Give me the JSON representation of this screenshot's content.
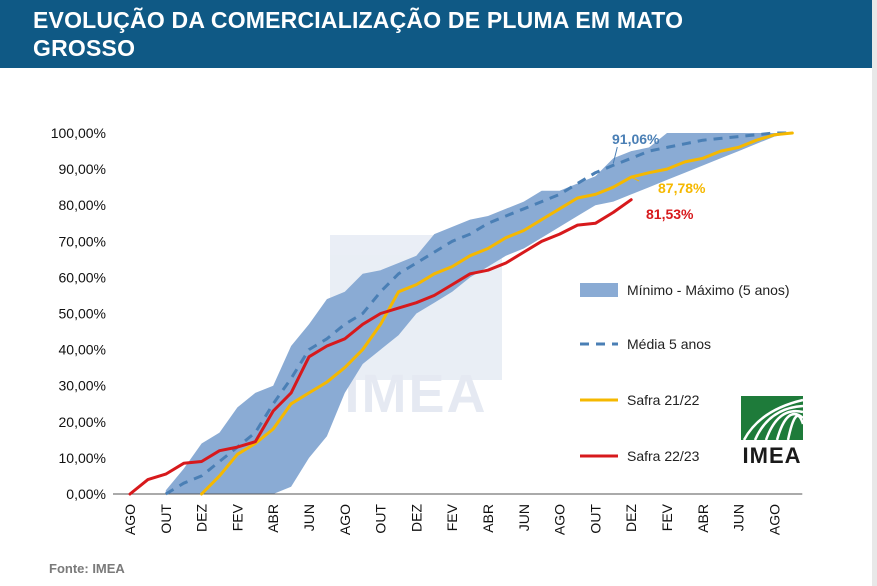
{
  "header": {
    "title": "EVOLUÇÃO DA COMERCIALIZAÇÃO DE PLUMA EM MATO GROSSO",
    "color": "#0f5985"
  },
  "source": "Fonte: IMEA",
  "watermark": {
    "text": "IMEA"
  },
  "logo": {
    "text": "IMEA",
    "color": "#1e7b3a"
  },
  "chart_data": {
    "type": "line",
    "x_categories": [
      "AGO",
      "OUT",
      "DEZ",
      "FEV",
      "ABR",
      "JUN",
      "AGO",
      "OUT",
      "DEZ",
      "FEV",
      "ABR",
      "JUN",
      "AGO",
      "OUT",
      "DEZ",
      "FEV",
      "ABR",
      "JUN",
      "AGO"
    ],
    "y_ticks": [
      "0,00%",
      "10,00%",
      "20,00%",
      "30,00%",
      "40,00%",
      "50,00%",
      "60,00%",
      "70,00%",
      "80,00%",
      "90,00%",
      "100,00%"
    ],
    "ylim": [
      0,
      100
    ],
    "legend_position": "right",
    "series": [
      {
        "name": "Mínimo - Máximo (5 anos)",
        "kind": "band",
        "color": "#8aabd4",
        "x": [
          1.0,
          1.5,
          2.0,
          2.5,
          3.0,
          3.5,
          4.0,
          4.5,
          5.0,
          5.5,
          6.0,
          6.5,
          7.0,
          7.5,
          8.0,
          8.5,
          9.0,
          9.5,
          10.0,
          10.5,
          11.0,
          11.5,
          12.0,
          12.5,
          13.0,
          13.5,
          14.0,
          14.5,
          15.0,
          15.5,
          16.0,
          16.5,
          17.0,
          17.5,
          18.0,
          18.5
        ],
        "min": [
          0,
          0,
          0,
          0,
          0,
          0,
          0,
          2,
          10,
          16,
          28,
          36,
          40,
          44,
          50,
          53,
          56,
          60,
          63,
          66,
          68,
          71,
          74,
          77,
          80,
          81,
          83,
          85,
          87,
          89,
          91,
          93,
          95,
          97,
          99,
          100
        ],
        "max": [
          1,
          7,
          14,
          17,
          24,
          28,
          30,
          41,
          47,
          54,
          56,
          61,
          62,
          64,
          66,
          72,
          74,
          76,
          77,
          79,
          81,
          84,
          84,
          86,
          88,
          93,
          95,
          96,
          100,
          100,
          100,
          100,
          100,
          100,
          100,
          100
        ]
      },
      {
        "name": "Média 5 anos",
        "kind": "dashed",
        "color": "#4a7fb5",
        "x": [
          1.0,
          1.5,
          2.0,
          2.5,
          3.0,
          3.5,
          4.0,
          4.5,
          5.0,
          5.5,
          6.0,
          6.5,
          7.0,
          7.5,
          8.0,
          8.5,
          9.0,
          9.5,
          10.0,
          10.5,
          11.0,
          11.5,
          12.0,
          12.5,
          13.0,
          13.5,
          14.0,
          14.5,
          15.0,
          15.5,
          16.0,
          16.5,
          17.0,
          17.5,
          18.0,
          18.5
        ],
        "y": [
          0,
          3,
          5,
          9,
          13,
          17,
          25,
          32,
          40,
          43,
          47,
          50,
          56,
          61,
          64,
          67,
          70,
          72,
          75,
          77,
          79,
          81,
          83,
          86,
          89,
          91.06,
          93,
          95,
          96,
          97,
          98,
          98.5,
          99,
          99.5,
          100,
          100
        ]
      },
      {
        "name": "Safra 21/22",
        "kind": "solid",
        "color": "#f5b800",
        "x": [
          2.0,
          2.5,
          3.0,
          3.5,
          4.0,
          4.5,
          5.0,
          5.5,
          6.0,
          6.5,
          7.0,
          7.5,
          8.0,
          8.5,
          9.0,
          9.5,
          10.0,
          10.5,
          11.0,
          11.5,
          12.0,
          12.5,
          13.0,
          13.5,
          14.0,
          14.5,
          15.0,
          15.5,
          16.0,
          16.5,
          17.0,
          17.5,
          18.0,
          18.5
        ],
        "y": [
          0,
          5,
          11,
          14,
          18,
          25,
          28,
          31,
          35,
          40,
          47,
          56,
          58,
          61,
          63,
          66,
          68,
          71,
          73,
          76,
          79,
          82,
          83,
          85,
          87.78,
          89,
          90,
          92,
          93,
          95,
          96,
          98,
          99.5,
          100
        ]
      },
      {
        "name": "Safra 22/23",
        "kind": "solid",
        "color": "#d7191c",
        "x": [
          0,
          0.5,
          1.0,
          1.5,
          2.0,
          2.5,
          3.0,
          3.5,
          4.0,
          4.5,
          5.0,
          5.5,
          6.0,
          6.5,
          7.0,
          7.5,
          8.0,
          8.5,
          9.0,
          9.5,
          10.0,
          10.5,
          11.0,
          11.5,
          12.0,
          12.5,
          13.0,
          13.5,
          14.0
        ],
        "y": [
          0,
          4,
          5.5,
          8.5,
          9,
          12,
          13,
          14.5,
          23,
          28,
          38,
          41,
          43,
          47,
          50,
          51.5,
          53,
          55,
          58,
          61,
          62,
          64,
          67,
          70,
          72,
          74.5,
          75,
          78,
          81.53
        ]
      }
    ],
    "annotations": [
      {
        "text": "91,06%",
        "color": "#4a7fb5",
        "x": 13.5,
        "y": 91.06
      },
      {
        "text": "87,78%",
        "color": "#f5b800",
        "x": 14.0,
        "y": 87.78
      },
      {
        "text": "81,53%",
        "color": "#d7191c",
        "x": 14.0,
        "y": 81.53
      }
    ]
  }
}
